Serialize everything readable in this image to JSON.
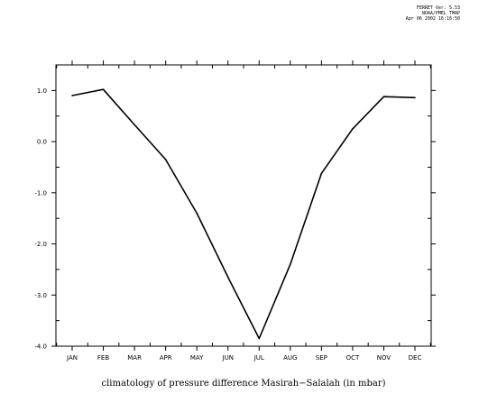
{
  "stamp": {
    "line1": "FERRET Ver. 5.53",
    "line2": "NOAA/PMEL TMAP",
    "line3": "Apr 06 2002 16:16:50"
  },
  "caption": "climatology of pressure difference Masirah−Salalah (in mbar)",
  "chart_data": {
    "type": "line",
    "categories": [
      "JAN",
      "FEB",
      "MAR",
      "APR",
      "MAY",
      "JUN",
      "JUL",
      "AUG",
      "SEP",
      "OCT",
      "NOV",
      "DEC"
    ],
    "values": [
      0.9,
      1.02,
      0.33,
      -0.35,
      -1.4,
      -2.65,
      -3.85,
      -2.4,
      -0.62,
      0.25,
      0.88,
      0.86
    ],
    "title": "climatology of pressure difference Masirah−Salalah (in mbar)",
    "xlabel": "",
    "ylabel": "",
    "ylim": [
      -4.0,
      1.5
    ],
    "yticks": [
      -4.0,
      -3.0,
      -2.0,
      -1.0,
      0.0,
      1.0
    ],
    "ytick_labels": [
      "-4.0",
      "-3.0",
      "-2.0",
      "-1.0",
      "0.0",
      "1.0"
    ],
    "grid": false,
    "legend": "none",
    "line_color": "#000000"
  }
}
